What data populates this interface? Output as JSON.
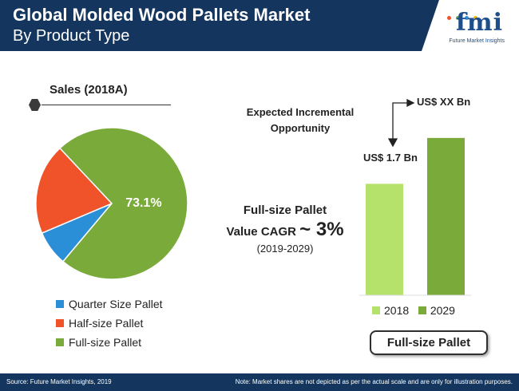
{
  "header": {
    "title": "Global Molded Wood Pallets Market",
    "subtitle": "By Product Type",
    "logo_text": "fmi",
    "logo_sub": "Future Market Insights"
  },
  "pie_section": {
    "title": "Sales (2018A)"
  },
  "cagr": {
    "line1": "Full-size Pallet",
    "line2_prefix": "Value CAGR",
    "line2_value": "~ 3%",
    "line3": "(2019-2029)"
  },
  "bar_section": {
    "expected_line1": "Expected Incremental",
    "expected_line2": "Opportunity",
    "box_label": "Full-size Pallet"
  },
  "footer": {
    "source": "Source: Future Market Insights, 2019",
    "note": "Note: Market shares are not depicted as per the actual scale and are only for illustration purposes."
  },
  "colors": {
    "header_bg": "#14365e",
    "quarter": "#2b8fd8",
    "half": "#f0522a",
    "full": "#7aab3a",
    "bar_2018": "#b5e26a",
    "bar_2029": "#7aab3a"
  },
  "chart_data": [
    {
      "type": "pie",
      "title": "Sales (2018A)",
      "labels": [
        "Quarter Size Pallet",
        "Half-size Pallet",
        "Full-size Pallet"
      ],
      "values": [
        7.5,
        19.4,
        73.1
      ],
      "data_labels": [
        "",
        "",
        "73.1%"
      ],
      "colors": [
        "#2b8fd8",
        "#f0522a",
        "#7aab3a"
      ],
      "legend": "bottom-left"
    },
    {
      "type": "bar",
      "categories": [
        "2018",
        "2029"
      ],
      "values": [
        1.7,
        2.4
      ],
      "data_labels": [
        "US$ 1.7 Bn",
        "US$ XX Bn"
      ],
      "colors": [
        "#b5e26a",
        "#7aab3a"
      ],
      "legend": "bottom",
      "ylim": [
        0,
        2.8
      ]
    }
  ]
}
